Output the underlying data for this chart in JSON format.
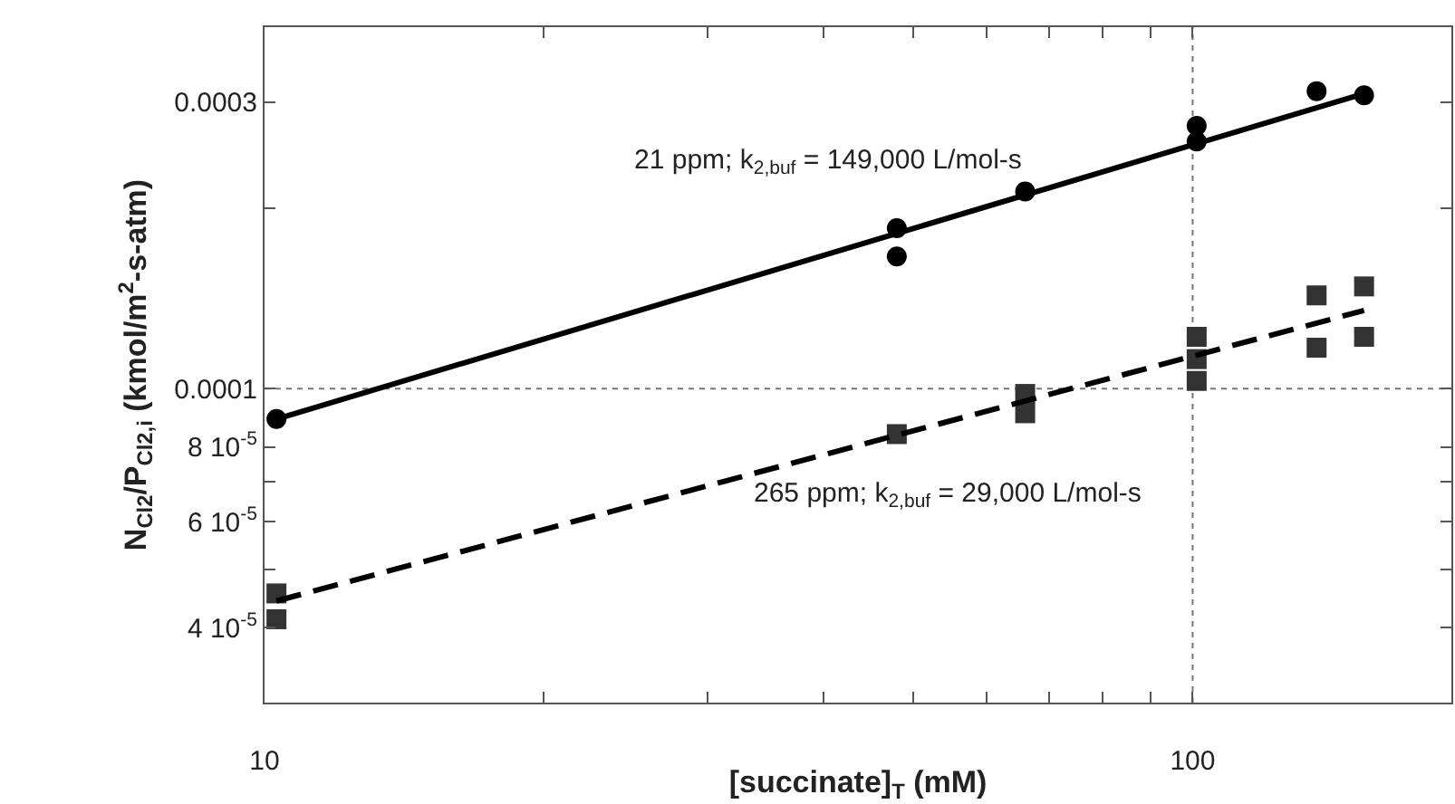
{
  "chart_data": {
    "type": "scatter",
    "xlabel": "[succinate]$_{T}$ (mM)",
    "ylabel": "N$_{Cl2}$/P$_{Cl2,i}$ (kmol/m$^{2}$-s-atm)",
    "log": "xy",
    "grid": false,
    "xlim": [
      10,
      190
    ],
    "xticks": [
      10,
      {
        "value": 20,
        "label": null
      },
      {
        "value": 30,
        "label": null
      },
      {
        "value": 40,
        "label": null
      },
      {
        "value": 50,
        "label": null
      },
      {
        "value": 60,
        "label": null
      },
      {
        "value": 70,
        "label": null
      },
      {
        "value": 80,
        "label": null
      },
      {
        "value": 90,
        "label": null
      },
      100
    ],
    "ylim": [
      3e-05,
      0.0004
    ],
    "yticks": [
      {
        "value": 4e-05,
        "label": "4 10$^{-5}$"
      },
      {
        "value": 5e-05,
        "label": null
      },
      {
        "value": 6e-05,
        "label": "6 10$^{-5}$"
      },
      {
        "value": 7e-05,
        "label": null
      },
      {
        "value": 8e-05,
        "label": "8 10$^{-5}$"
      },
      0.0001,
      {
        "value": 0.0002,
        "label": null
      },
      0.0003
    ],
    "series": [
      {
        "marker": "circle",
        "color": "#000000",
        "x": [
          10.3,
          48,
          48,
          66,
          101,
          101,
          136,
          153
        ],
        "values": [
          8.9e-05,
          0.000185,
          0.000166,
          0.000213,
          0.000274,
          0.000258,
          0.000313,
          0.000308
        ]
      },
      {
        "marker": "square",
        "color": "#333333",
        "x": [
          10.3,
          10.3,
          48,
          66,
          66,
          101,
          101,
          101,
          136,
          136,
          153,
          153
        ],
        "values": [
          4.56e-05,
          4.13e-05,
          8.4e-05,
          9.8e-05,
          9.1e-05,
          0.000122,
          0.000112,
          0.000103,
          0.000143,
          0.000117,
          0.000148,
          0.000122
        ]
      },
      {
        "type": "line",
        "line_style": "solid",
        "color": "#000000",
        "x": [
          10.3,
          153
        ],
        "values": [
          8.9e-05,
          0.00031
        ]
      },
      {
        "type": "line",
        "line_style": "dashed",
        "color": "#000000",
        "x": [
          10.3,
          153
        ],
        "values": [
          4.43e-05,
          0.000135
        ]
      }
    ],
    "ref_lines": [
      {
        "axis": "y",
        "value": 0.0001,
        "line_style": "dotted",
        "color": "#777777"
      },
      {
        "axis": "x",
        "value": 100,
        "line_style": "dotted",
        "color": "#777777"
      }
    ],
    "annotations": [
      "21 ppm; k$_{2,buf}$ = 149,000 L/mol-s",
      "265 ppm; k$_{2,buf}$ = 29,000 L/mol-s"
    ]
  }
}
